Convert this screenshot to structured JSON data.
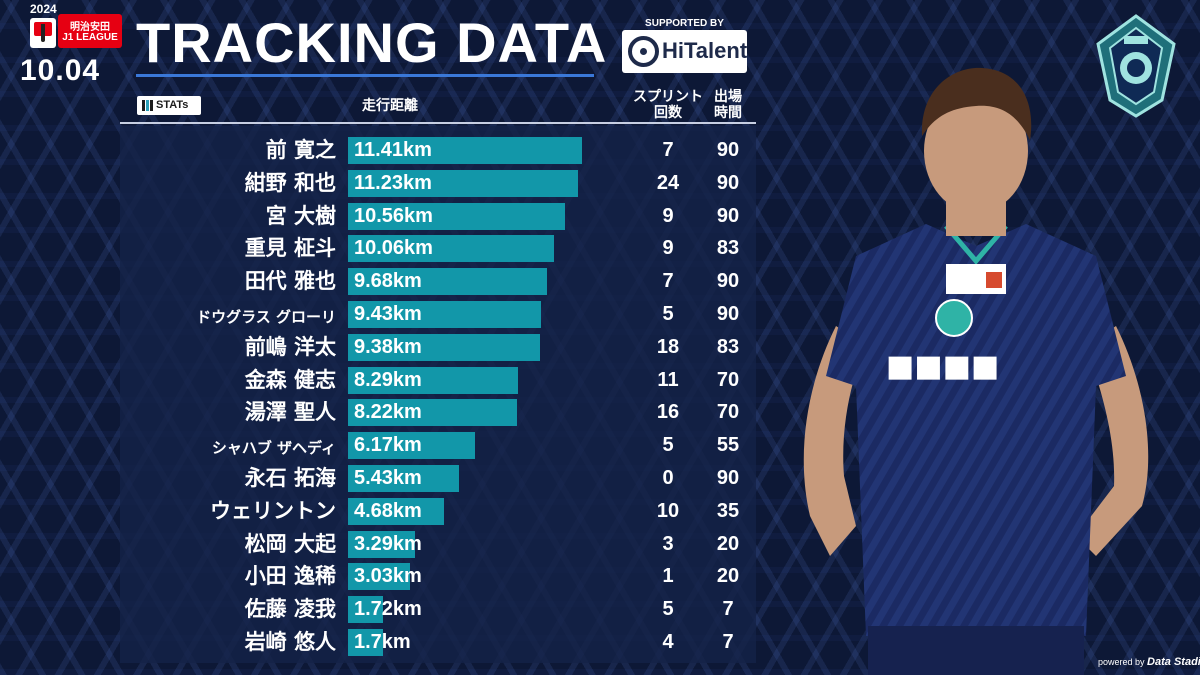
{
  "header": {
    "year": "2024",
    "league_sponsor": "明治安田",
    "league_name": "J1 LEAGUE",
    "date": "10.04",
    "title": "TRACKING DATA",
    "supported_by": "SUPPORTED BY",
    "sponsor_name": "HiTalent"
  },
  "table": {
    "stats_badge": "STATs",
    "col_distance": "走行距離",
    "col_sprint_line1": "スプリント",
    "col_sprint_line2": "回数",
    "col_time_line1": "出場",
    "col_time_line2": "時間"
  },
  "chart_data": {
    "type": "bar",
    "orientation": "horizontal",
    "title": "TRACKING DATA",
    "xlabel": "走行距離",
    "unit": "km",
    "xlim": [
      0,
      11.41
    ],
    "categories": [
      "前 寛之",
      "紺野 和也",
      "宮 大樹",
      "重見 柾斗",
      "田代 雅也",
      "ドウグラス グローリ",
      "前嶋 洋太",
      "金森 健志",
      "湯澤 聖人",
      "シャハブ ザヘディ",
      "永石 拓海",
      "ウェリントン",
      "松岡 大起",
      "小田 逸稀",
      "佐藤 凌我",
      "岩崎 悠人"
    ],
    "series": [
      {
        "name": "走行距離",
        "values": [
          11.41,
          11.23,
          10.56,
          10.06,
          9.68,
          9.43,
          9.38,
          8.29,
          8.22,
          6.17,
          5.43,
          4.68,
          3.29,
          3.03,
          1.72,
          1.7
        ]
      }
    ],
    "value_labels": [
      "11.41km",
      "11.23km",
      "10.56km",
      "10.06km",
      "9.68km",
      "9.43km",
      "9.38km",
      "8.29km",
      "8.22km",
      "6.17km",
      "5.43km",
      "4.68km",
      "3.29km",
      "3.03km",
      "1.72km",
      "1.7km"
    ],
    "sprints": [
      7,
      24,
      9,
      9,
      7,
      5,
      18,
      11,
      16,
      5,
      0,
      10,
      3,
      1,
      5,
      4
    ],
    "minutes": [
      90,
      90,
      90,
      83,
      90,
      90,
      83,
      70,
      70,
      55,
      90,
      35,
      20,
      20,
      7,
      7
    ],
    "small_name_rows": [
      5,
      9
    ],
    "colors": {
      "bar": "#1297a9",
      "background": "#0d1836"
    }
  },
  "footer": {
    "powered_by": "powered by",
    "provider": "Data Stadium"
  }
}
